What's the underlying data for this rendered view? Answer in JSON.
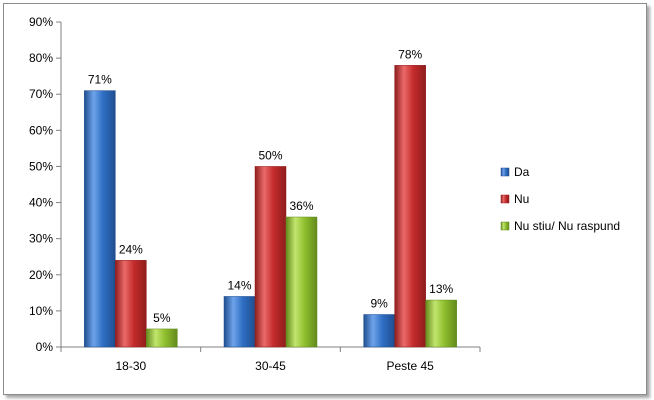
{
  "chart_data": {
    "type": "bar",
    "categories": [
      "18-30",
      "30-45",
      "Peste 45"
    ],
    "series": [
      {
        "name": "Da",
        "values": [
          71,
          14,
          9
        ],
        "labels": [
          "71%",
          "14%",
          "9%"
        ],
        "color": "#2f6fc4",
        "light": "#6ea3ea",
        "dark": "#1f4e8f"
      },
      {
        "name": "Nu",
        "values": [
          24,
          50,
          78
        ],
        "labels": [
          "24%",
          "50%",
          "78%"
        ],
        "color": "#c42b2b",
        "light": "#ea6a6a",
        "dark": "#8f1d1d"
      },
      {
        "name": "Nu stiu/ Nu raspund",
        "values": [
          5,
          36,
          13
        ],
        "labels": [
          "5%",
          "36%",
          "13%"
        ],
        "color": "#8fbf2e",
        "light": "#c2e56e",
        "dark": "#638a1c"
      }
    ],
    "yticks": [
      "0%",
      "10%",
      "20%",
      "30%",
      "40%",
      "50%",
      "60%",
      "70%",
      "80%",
      "90%"
    ],
    "ylim": [
      0,
      90
    ],
    "xlabel": "",
    "ylabel": "",
    "title": "",
    "grid": false,
    "legend": "right"
  }
}
